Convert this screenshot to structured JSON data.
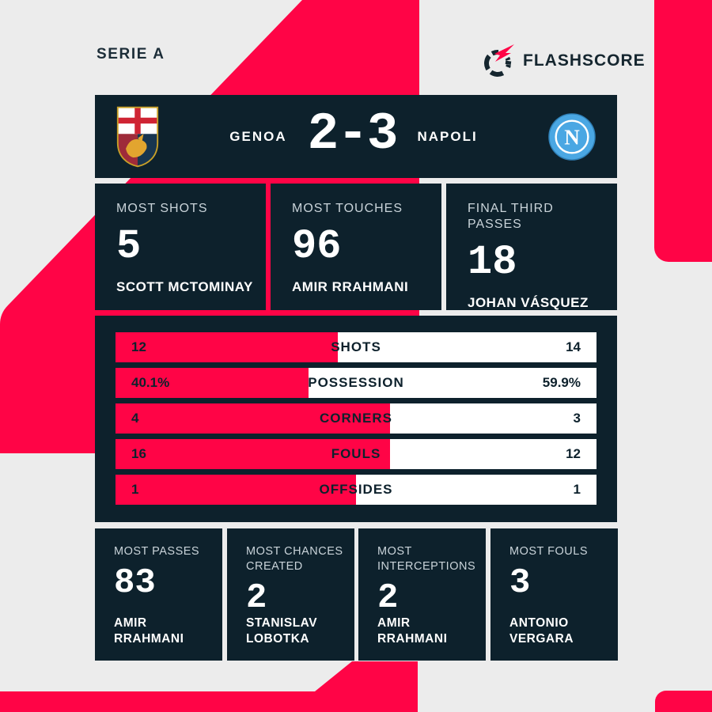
{
  "header": {
    "league": "SERIE A",
    "brand": "FLASHSCORE"
  },
  "colors": {
    "accent_red": "#ff0446",
    "panel_navy": "#0d212c",
    "background_gray": "#ececec",
    "muted_label": "#c9d3d9",
    "napoli_blue": "#4aa7e3"
  },
  "scoreboard": {
    "home_team": "GENOA",
    "away_team": "NAPOLI",
    "score": "2-3",
    "home_crest_icon": "genoa-crest",
    "away_crest_icon": "napoli-crest",
    "napoli_letter": "N"
  },
  "top_stats": [
    {
      "label": "MOST SHOTS",
      "value": "5",
      "player": "SCOTT MCTOMINAY"
    },
    {
      "label": "MOST TOUCHES",
      "value": "96",
      "player": "AMIR RRAHMANI"
    },
    {
      "label": "FINAL THIRD PASSES",
      "value": "18",
      "player": "JOHAN VÁSQUEZ"
    }
  ],
  "match_stats": {
    "rows": [
      {
        "label": "SHOTS",
        "home": "12",
        "away": "14",
        "home_pct": 46.15
      },
      {
        "label": "POSSESSION",
        "home": "40.1%",
        "away": "59.9%",
        "home_pct": 40.1
      },
      {
        "label": "CORNERS",
        "home": "4",
        "away": "3",
        "home_pct": 57.14
      },
      {
        "label": "FOULS",
        "home": "16",
        "away": "12",
        "home_pct": 57.14
      },
      {
        "label": "OFFSIDES",
        "home": "1",
        "away": "1",
        "home_pct": 50
      }
    ]
  },
  "bottom_stats": [
    {
      "label": "MOST PASSES",
      "value": "83",
      "player": "AMIR RRAHMANI"
    },
    {
      "label": "MOST CHANCES CREATED",
      "value": "2",
      "player": "STANISLAV LOBOTKA"
    },
    {
      "label": "MOST INTERCEPTIONS",
      "value": "2",
      "player": "AMIR RRAHMANI"
    },
    {
      "label": "MOST FOULS",
      "value": "3",
      "player": "ANTONIO VERGARA"
    }
  ],
  "chart_data": {
    "type": "bar",
    "title": "Serie A: Genoa 2-3 Napoli — match statistics",
    "categories": [
      "SHOTS",
      "POSSESSION",
      "CORNERS",
      "FOULS",
      "OFFSIDES"
    ],
    "series": [
      {
        "name": "Genoa",
        "values": [
          12,
          40.1,
          4,
          16,
          1
        ]
      },
      {
        "name": "Napoli",
        "values": [
          14,
          59.9,
          3,
          12,
          1
        ]
      }
    ],
    "value_labels": {
      "home": [
        "12",
        "40.1%",
        "4",
        "16",
        "1"
      ],
      "away": [
        "14",
        "59.9%",
        "3",
        "12",
        "1"
      ]
    },
    "layout": "horizontal-split-bars, home share red from left, away share white, label centered",
    "leaders": [
      {
        "stat": "MOST SHOTS",
        "value": 5,
        "player": "SCOTT MCTOMINAY"
      },
      {
        "stat": "MOST TOUCHES",
        "value": 96,
        "player": "AMIR RRAHMANI"
      },
      {
        "stat": "FINAL THIRD PASSES",
        "value": 18,
        "player": "JOHAN VÁSQUEZ"
      },
      {
        "stat": "MOST PASSES",
        "value": 83,
        "player": "AMIR RRAHMANI"
      },
      {
        "stat": "MOST CHANCES CREATED",
        "value": 2,
        "player": "STANISLAV LOBOTKA"
      },
      {
        "stat": "MOST INTERCEPTIONS",
        "value": 2,
        "player": "AMIR RRAHMANI"
      },
      {
        "stat": "MOST FOULS",
        "value": 3,
        "player": "ANTONIO VERGARA"
      }
    ]
  }
}
